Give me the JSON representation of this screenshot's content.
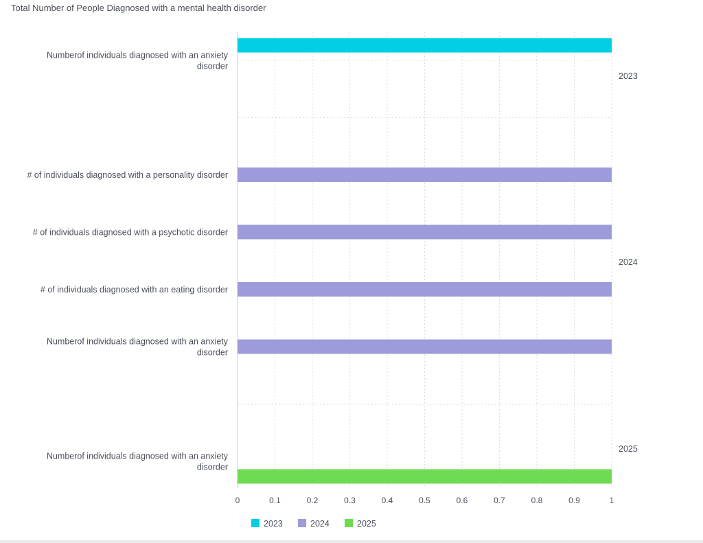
{
  "chart_data": {
    "type": "bar",
    "orientation": "horizontal",
    "title": "Total Number of People Diagnosed with a mental health disorder",
    "xlabel": "",
    "ylabel": "",
    "xlim": [
      0,
      1
    ],
    "x_ticks": [
      "0",
      "0.1",
      "0.2",
      "0.3",
      "0.4",
      "0.5",
      "0.6",
      "0.7",
      "0.8",
      "0.9",
      "1"
    ],
    "grid": "vertical dotted",
    "legend_position": "bottom",
    "series": [
      {
        "name": "2023",
        "color": "#00cfe6"
      },
      {
        "name": "2024",
        "color": "#9d9bd9"
      },
      {
        "name": "2025",
        "color": "#6fdb52"
      }
    ],
    "groups": [
      {
        "name": "2023",
        "rows": [
          {
            "category": [
              "Numberof individuals diagnosed with an anxiety",
              "disorder"
            ],
            "value": 1,
            "series": "2023"
          }
        ]
      },
      {
        "name": "2024",
        "rows": [
          {
            "category": [
              "# of individuals diagnosed with a personality disorder"
            ],
            "value": 1,
            "series": "2024"
          },
          {
            "category": [
              "# of individuals diagnosed with a psychotic disorder"
            ],
            "value": 1,
            "series": "2024"
          },
          {
            "category": [
              "# of individuals diagnosed with an eating disorder"
            ],
            "value": 1,
            "series": "2024"
          },
          {
            "category": [
              "Numberof individuals diagnosed with an anxiety",
              "disorder"
            ],
            "value": 1,
            "series": "2024"
          }
        ]
      },
      {
        "name": "2025",
        "rows": [
          {
            "category": [
              "Numberof individuals diagnosed with an anxiety",
              "disorder"
            ],
            "value": 1,
            "series": "2025"
          }
        ]
      }
    ]
  }
}
